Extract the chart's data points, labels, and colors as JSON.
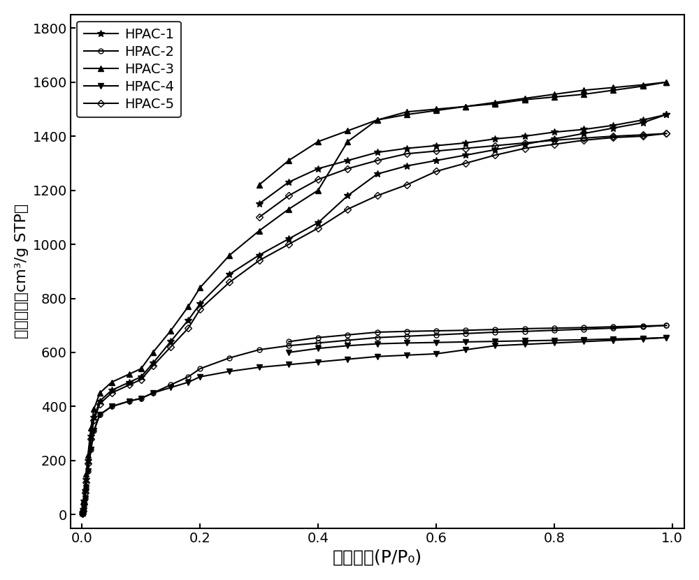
{
  "title": "",
  "xlabel": "相对压力(P/P₀)",
  "ylabel": "吸附容量（cm³/g STP）",
  "xlim": [
    -0.02,
    1.02
  ],
  "ylim": [
    -50,
    1850
  ],
  "yticks": [
    0,
    200,
    400,
    600,
    800,
    1000,
    1200,
    1400,
    1600,
    1800
  ],
  "xticks": [
    0.0,
    0.2,
    0.4,
    0.6,
    0.8,
    1.0
  ],
  "series": [
    {
      "name": "HPAC-1",
      "marker": "*",
      "color": "black",
      "adsorption_x": [
        0.001,
        0.002,
        0.003,
        0.005,
        0.007,
        0.01,
        0.015,
        0.02,
        0.03,
        0.05,
        0.08,
        0.1,
        0.12,
        0.15,
        0.18,
        0.2,
        0.25,
        0.3,
        0.35,
        0.4,
        0.45,
        0.5,
        0.55,
        0.6,
        0.65,
        0.7,
        0.75,
        0.8,
        0.85,
        0.9,
        0.95,
        0.99
      ],
      "adsorption_y": [
        5,
        20,
        50,
        90,
        130,
        200,
        290,
        360,
        420,
        460,
        490,
        510,
        560,
        640,
        720,
        780,
        890,
        960,
        1020,
        1080,
        1180,
        1260,
        1290,
        1310,
        1330,
        1350,
        1370,
        1390,
        1410,
        1430,
        1450,
        1480
      ],
      "desorption_x": [
        0.99,
        0.95,
        0.9,
        0.85,
        0.8,
        0.75,
        0.7,
        0.65,
        0.6,
        0.55,
        0.5,
        0.45,
        0.4,
        0.35,
        0.3
      ],
      "desorption_y": [
        1480,
        1460,
        1440,
        1425,
        1415,
        1400,
        1390,
        1375,
        1365,
        1355,
        1340,
        1310,
        1280,
        1230,
        1150
      ]
    },
    {
      "name": "HPAC-2",
      "marker": "o",
      "color": "black",
      "adsorption_x": [
        0.001,
        0.002,
        0.003,
        0.005,
        0.007,
        0.01,
        0.015,
        0.02,
        0.03,
        0.05,
        0.08,
        0.1,
        0.12,
        0.15,
        0.18,
        0.2,
        0.25,
        0.3,
        0.35,
        0.4,
        0.45,
        0.5,
        0.55,
        0.6,
        0.65,
        0.7,
        0.75,
        0.8,
        0.85,
        0.9,
        0.95,
        0.99
      ],
      "adsorption_y": [
        3,
        10,
        30,
        60,
        100,
        160,
        240,
        310,
        370,
        400,
        420,
        430,
        450,
        480,
        510,
        540,
        580,
        610,
        625,
        635,
        645,
        655,
        660,
        665,
        670,
        675,
        678,
        682,
        686,
        690,
        695,
        700
      ],
      "desorption_x": [
        0.99,
        0.95,
        0.9,
        0.85,
        0.8,
        0.75,
        0.7,
        0.65,
        0.6,
        0.55,
        0.5,
        0.45,
        0.4,
        0.35
      ],
      "desorption_y": [
        700,
        698,
        695,
        692,
        690,
        688,
        685,
        682,
        680,
        678,
        675,
        665,
        655,
        640
      ]
    },
    {
      "name": "HPAC-3",
      "marker": "^",
      "color": "black",
      "adsorption_x": [
        0.001,
        0.002,
        0.003,
        0.005,
        0.007,
        0.01,
        0.015,
        0.02,
        0.03,
        0.05,
        0.08,
        0.1,
        0.12,
        0.15,
        0.18,
        0.2,
        0.25,
        0.3,
        0.35,
        0.4,
        0.45,
        0.5,
        0.55,
        0.6,
        0.65,
        0.7,
        0.75,
        0.8,
        0.85,
        0.9,
        0.95,
        0.99
      ],
      "adsorption_y": [
        5,
        20,
        55,
        100,
        150,
        220,
        320,
        390,
        450,
        490,
        520,
        540,
        600,
        680,
        770,
        840,
        960,
        1050,
        1130,
        1200,
        1380,
        1460,
        1480,
        1495,
        1510,
        1525,
        1540,
        1555,
        1570,
        1580,
        1590,
        1600
      ],
      "desorption_x": [
        0.99,
        0.95,
        0.9,
        0.85,
        0.8,
        0.75,
        0.7,
        0.65,
        0.6,
        0.55,
        0.5,
        0.45,
        0.4,
        0.35,
        0.3
      ],
      "desorption_y": [
        1600,
        1585,
        1570,
        1555,
        1545,
        1535,
        1520,
        1510,
        1500,
        1490,
        1460,
        1420,
        1380,
        1310,
        1220
      ]
    },
    {
      "name": "HPAC-4",
      "marker": "v",
      "color": "black",
      "adsorption_x": [
        0.001,
        0.002,
        0.003,
        0.005,
        0.007,
        0.01,
        0.015,
        0.02,
        0.03,
        0.05,
        0.08,
        0.1,
        0.12,
        0.15,
        0.18,
        0.2,
        0.25,
        0.3,
        0.35,
        0.4,
        0.45,
        0.5,
        0.55,
        0.6,
        0.65,
        0.7,
        0.75,
        0.8,
        0.85,
        0.9,
        0.95,
        0.99
      ],
      "adsorption_y": [
        3,
        10,
        30,
        60,
        100,
        160,
        240,
        310,
        370,
        400,
        420,
        430,
        450,
        470,
        490,
        510,
        530,
        545,
        555,
        565,
        575,
        585,
        590,
        595,
        610,
        625,
        630,
        635,
        640,
        645,
        650,
        655
      ],
      "desorption_x": [
        0.99,
        0.95,
        0.9,
        0.85,
        0.8,
        0.75,
        0.7,
        0.65,
        0.6,
        0.55,
        0.5,
        0.45,
        0.4,
        0.35
      ],
      "desorption_y": [
        655,
        652,
        650,
        647,
        645,
        643,
        641,
        639,
        637,
        635,
        632,
        625,
        615,
        600
      ]
    },
    {
      "name": "HPAC-5",
      "marker": "D",
      "color": "black",
      "adsorption_x": [
        0.001,
        0.002,
        0.003,
        0.005,
        0.007,
        0.01,
        0.015,
        0.02,
        0.03,
        0.05,
        0.08,
        0.1,
        0.12,
        0.15,
        0.18,
        0.2,
        0.25,
        0.3,
        0.35,
        0.4,
        0.45,
        0.5,
        0.55,
        0.6,
        0.65,
        0.7,
        0.75,
        0.8,
        0.85,
        0.9,
        0.95,
        0.99
      ],
      "adsorption_y": [
        4,
        15,
        40,
        80,
        120,
        190,
        280,
        350,
        410,
        450,
        480,
        500,
        550,
        620,
        690,
        760,
        860,
        940,
        1000,
        1060,
        1130,
        1180,
        1220,
        1270,
        1300,
        1330,
        1355,
        1370,
        1385,
        1395,
        1400,
        1410
      ],
      "desorption_x": [
        0.99,
        0.95,
        0.9,
        0.85,
        0.8,
        0.75,
        0.7,
        0.65,
        0.6,
        0.55,
        0.5,
        0.45,
        0.4,
        0.35,
        0.3
      ],
      "desorption_y": [
        1410,
        1405,
        1400,
        1393,
        1385,
        1375,
        1365,
        1355,
        1345,
        1335,
        1310,
        1280,
        1240,
        1180,
        1100
      ]
    }
  ],
  "figsize": [
    10.0,
    8.31
  ],
  "dpi": 100
}
